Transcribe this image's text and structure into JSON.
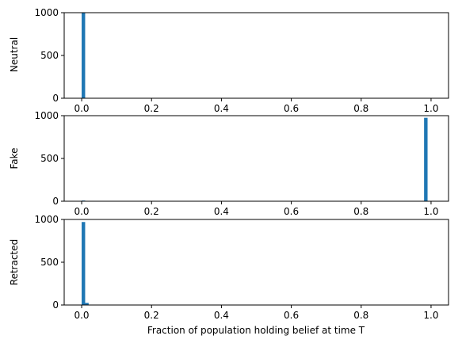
{
  "chart_data": [
    {
      "type": "bar",
      "ylabel": "Neutral",
      "xlabel": "",
      "xlim": [
        -0.05,
        1.05
      ],
      "ylim": [
        0,
        1000
      ],
      "xticks": [
        "0.0",
        "0.2",
        "0.4",
        "0.6",
        "0.8",
        "1.0"
      ],
      "yticks": [
        "0",
        "500",
        "1000"
      ],
      "bin_width": 0.01,
      "bins": [
        {
          "x": 0.0,
          "value": 1000
        },
        {
          "x": 0.98,
          "value": 3
        }
      ]
    },
    {
      "type": "bar",
      "ylabel": "Fake",
      "xlabel": "",
      "xlim": [
        -0.05,
        1.05
      ],
      "ylim": [
        0,
        1000
      ],
      "xticks": [
        "0.0",
        "0.2",
        "0.4",
        "0.6",
        "0.8",
        "1.0"
      ],
      "yticks": [
        "0",
        "500",
        "1000"
      ],
      "bin_width": 0.01,
      "bins": [
        {
          "x": 0.0,
          "value": 8
        },
        {
          "x": 0.98,
          "value": 975
        }
      ]
    },
    {
      "type": "bar",
      "ylabel": "Retracted",
      "xlabel": "Fraction of population holding belief at time T",
      "xlim": [
        -0.05,
        1.05
      ],
      "ylim": [
        0,
        1000
      ],
      "xticks": [
        "0.0",
        "0.2",
        "0.4",
        "0.6",
        "0.8",
        "1.0"
      ],
      "yticks": [
        "0",
        "500",
        "1000"
      ],
      "bin_width": 0.01,
      "bins": [
        {
          "x": 0.0,
          "value": 970
        },
        {
          "x": 0.01,
          "value": 25
        }
      ]
    }
  ],
  "colors": {
    "bar": "#1f77b4",
    "axes": "#000000"
  }
}
